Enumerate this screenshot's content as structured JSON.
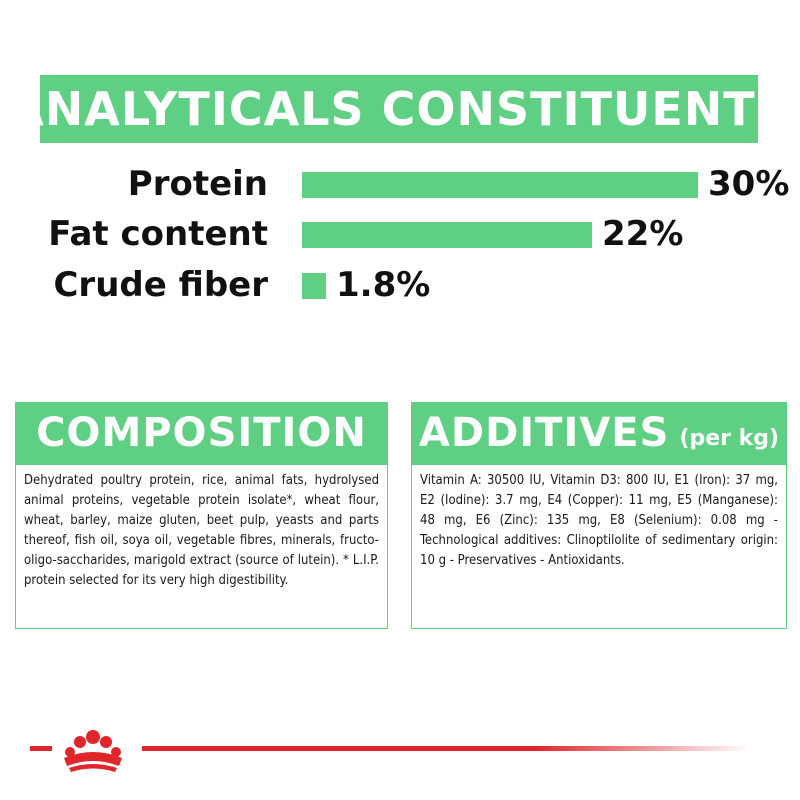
{
  "analytical": {
    "title": "ANALYTICALS CONSTITUENTS",
    "items": [
      {
        "label": "Protein",
        "value": "30%",
        "percent": 30
      },
      {
        "label": "Fat content",
        "value": "22%",
        "percent": 22
      },
      {
        "label": "Crude fiber",
        "value": "1.8%",
        "percent": 1.8
      }
    ]
  },
  "composition": {
    "title": "COMPOSITION",
    "text": "Dehydrated poultry protein, rice, animal fats, hydrolysed animal proteins, vegetable protein isolate*, wheat flour, wheat, barley, maize gluten, beet pulp, yeasts and parts thereof, fish oil, soya oil, vegetable fibres, minerals, fructo-oligo-saccharides, marigold extract (source of lutein). * L.I.P. protein selected for its very high digestibility."
  },
  "additives": {
    "title": "ADDITIVES",
    "suffix": "(per kg)",
    "text": "Vitamin A: 30500 IU, Vitamin D3: 800 IU, E1 (Iron): 37 mg, E2 (Iodine): 3.7 mg, E4 (Copper): 11 mg, E5 (Manganese): 48 mg, E6 (Zinc): 135 mg, E8 (Selenium): 0.08 mg - Technological additives: Clinoptilolite of sedimentary origin: 10 g - Preservatives - Antioxidants."
  },
  "colors": {
    "accent_green": "#5fcf84",
    "brand_red": "#e0262b"
  },
  "icons": {
    "logo": "royal-canin-crown-icon"
  }
}
